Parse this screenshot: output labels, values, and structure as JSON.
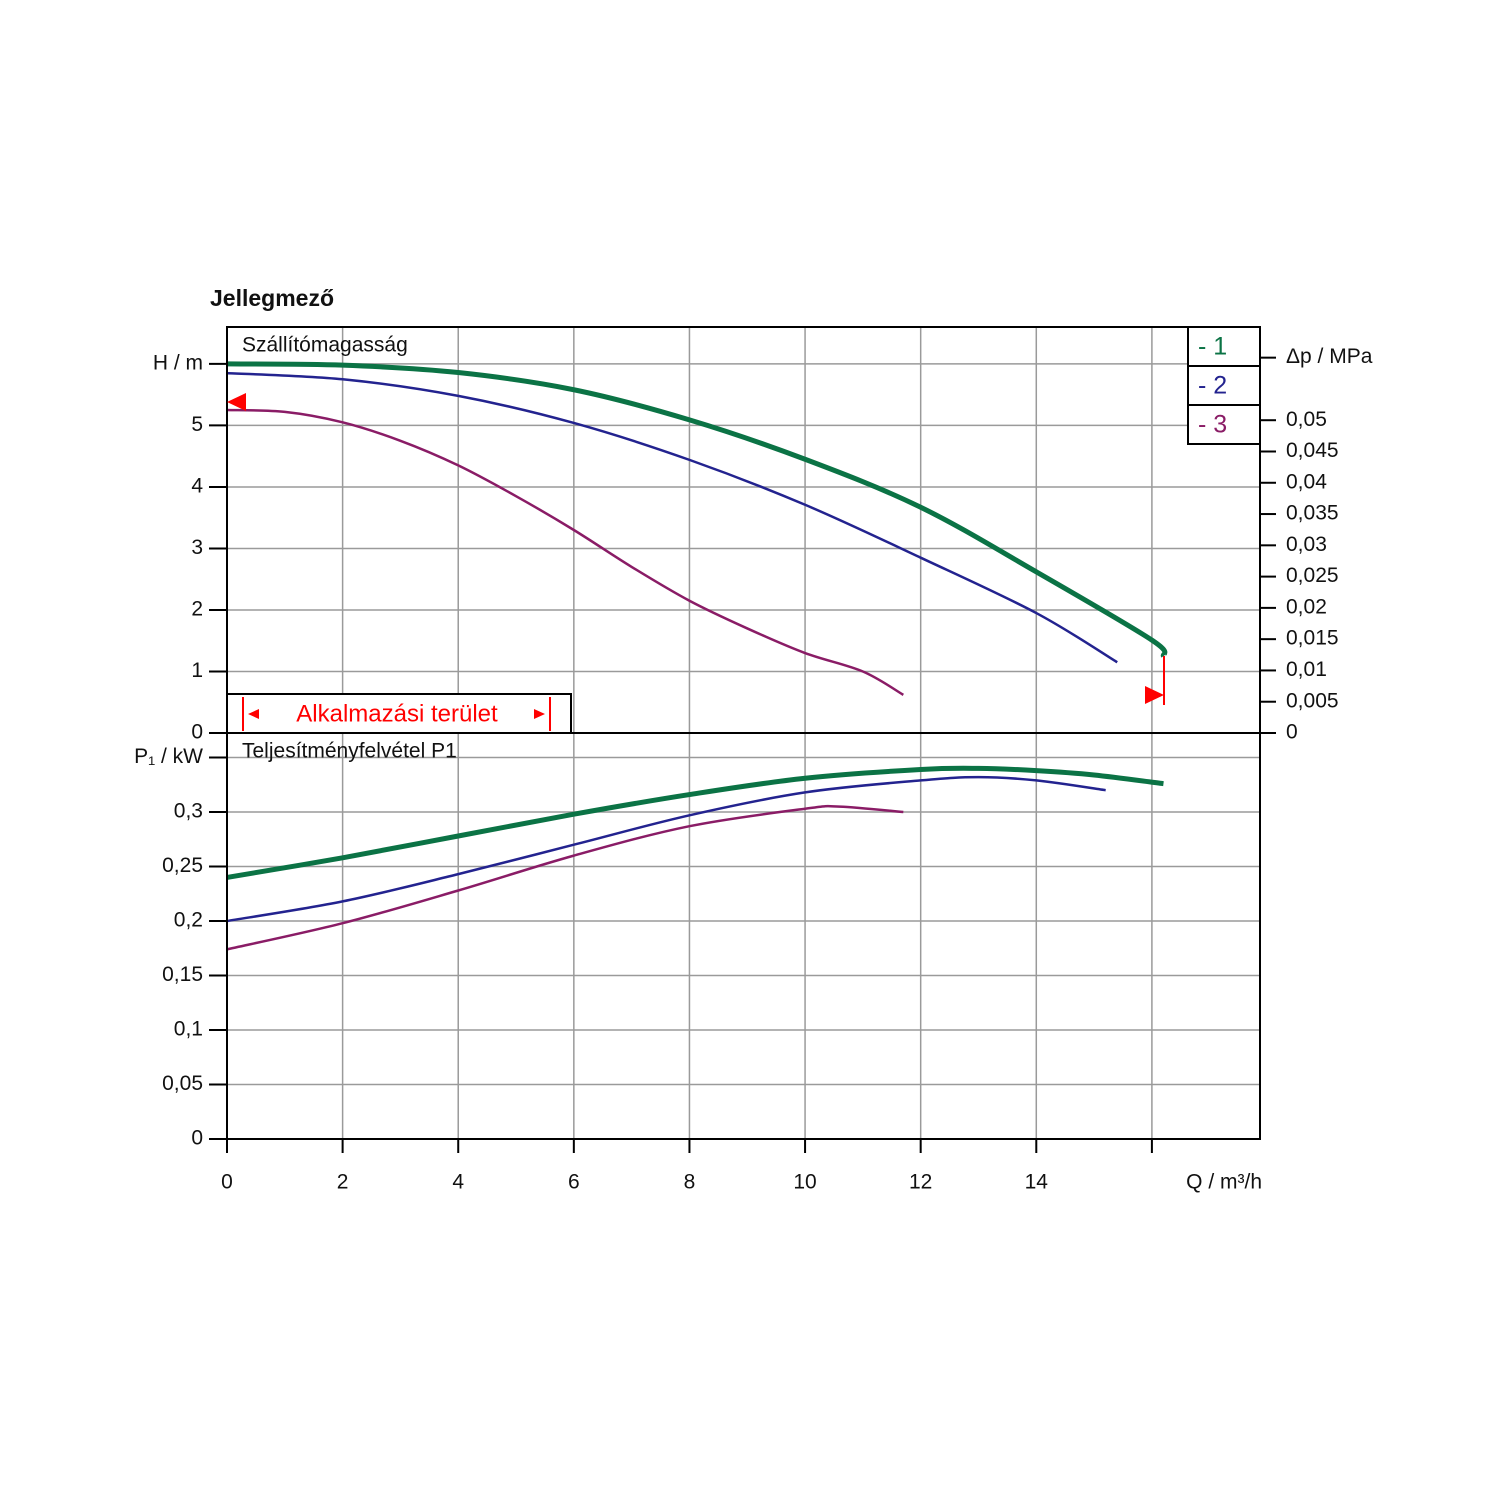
{
  "title": "Jellegmező",
  "chart_data": [
    {
      "type": "line",
      "subtitle": "Szállítómagasság",
      "xlim": [
        0,
        17.87
      ],
      "xticks": [
        0,
        2,
        4,
        6,
        8,
        10,
        12,
        14,
        {
          "value": 16,
          "label": null
        }
      ],
      "ylim": [
        0,
        6.6
      ],
      "yticks": [
        0,
        1,
        2,
        3,
        4,
        5,
        {
          "value": 6,
          "label": "H / m"
        }
      ],
      "y2lim": [
        0,
        0.0649
      ],
      "y2ticks": [
        0,
        {
          "value": 0.005,
          "label": "0,005"
        },
        {
          "value": 0.01,
          "label": "0,01"
        },
        {
          "value": 0.015,
          "label": "0,015"
        },
        {
          "value": 0.02,
          "label": "0,02"
        },
        {
          "value": 0.025,
          "label": "0,025"
        },
        {
          "value": 0.03,
          "label": "0,03"
        },
        {
          "value": 0.035,
          "label": "0,035"
        },
        {
          "value": 0.04,
          "label": "0,04"
        },
        {
          "value": 0.045,
          "label": "0,045"
        },
        {
          "value": 0.05,
          "label": "0,05"
        },
        {
          "value": 0.06,
          "label": "Δp / MPa"
        }
      ],
      "grid": true,
      "legend": "upper right",
      "annotation": "Alkalmazási terület",
      "series": [
        {
          "name": "- 1",
          "color": "#0b7345",
          "x": [
            0,
            2,
            4,
            6,
            8,
            10,
            12,
            14,
            16,
            16.2
          ],
          "values": [
            6.0,
            5.98,
            5.86,
            5.58,
            5.09,
            4.45,
            3.67,
            2.62,
            1.51,
            1.25
          ]
        },
        {
          "name": "- 2",
          "color": "#23238f",
          "x": [
            0,
            2,
            4,
            6,
            8,
            10,
            12,
            14,
            15.4
          ],
          "values": [
            5.85,
            5.75,
            5.48,
            5.04,
            4.44,
            3.71,
            2.85,
            1.95,
            1.15
          ]
        },
        {
          "name": "- 3",
          "color": "#8a1c66",
          "x": [
            0,
            1,
            2,
            3,
            4,
            5,
            6,
            7,
            8,
            9,
            10,
            11,
            11.7
          ],
          "values": [
            5.25,
            5.22,
            5.05,
            4.75,
            4.35,
            3.85,
            3.3,
            2.7,
            2.15,
            1.7,
            1.3,
            1.0,
            0.62
          ]
        }
      ]
    },
    {
      "type": "line",
      "subtitle": "Teljesítményfelvétel P1",
      "xlabel": "Q / m³/h",
      "xlim": [
        0,
        17.87
      ],
      "xticks": [
        0,
        2,
        4,
        6,
        8,
        10,
        12,
        14,
        {
          "value": 16,
          "label": null
        }
      ],
      "ylim": [
        0,
        0.3725
      ],
      "yticks": [
        0,
        {
          "value": 0.05,
          "label": "0,05"
        },
        {
          "value": 0.1,
          "label": "0,1"
        },
        {
          "value": 0.15,
          "label": "0,15"
        },
        {
          "value": 0.2,
          "label": "0,2"
        },
        {
          "value": 0.25,
          "label": "0,25"
        },
        {
          "value": 0.3,
          "label": "0,3"
        },
        {
          "value": 0.35,
          "label": "P₁ / kW"
        }
      ],
      "grid": true,
      "series": [
        {
          "color": "#0b7345",
          "x": [
            0,
            2,
            4,
            6,
            8,
            10,
            12,
            13,
            14,
            15,
            16.2
          ],
          "values": [
            0.24,
            0.258,
            0.278,
            0.298,
            0.316,
            0.331,
            0.339,
            0.34,
            0.338,
            0.334,
            0.326
          ]
        },
        {
          "color": "#23238f",
          "x": [
            0,
            2,
            4,
            6,
            8,
            10,
            12,
            13,
            14,
            15.2
          ],
          "values": [
            0.2,
            0.218,
            0.243,
            0.27,
            0.297,
            0.318,
            0.329,
            0.332,
            0.329,
            0.32
          ]
        },
        {
          "color": "#8a1c66",
          "x": [
            0,
            2,
            4,
            6,
            8,
            10,
            10.6,
            11.7
          ],
          "values": [
            0.174,
            0.198,
            0.228,
            0.26,
            0.287,
            0.303,
            0.305,
            0.3
          ]
        }
      ]
    }
  ]
}
